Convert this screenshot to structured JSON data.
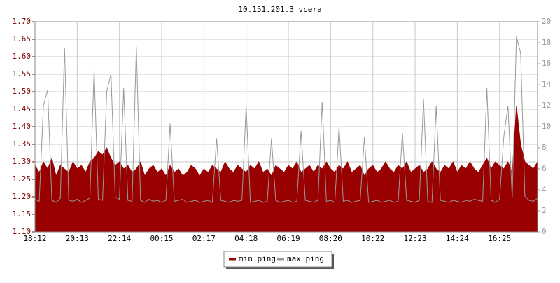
{
  "chart_data": {
    "type": "area-line",
    "title": "10.151.201.3 vcera",
    "categories": [
      "18:12",
      null,
      null,
      null,
      null,
      null,
      null,
      null,
      null,
      null,
      "20:13",
      null,
      null,
      null,
      null,
      null,
      null,
      null,
      null,
      null,
      "22:14",
      null,
      null,
      null,
      null,
      null,
      null,
      null,
      null,
      null,
      "00:15",
      null,
      null,
      null,
      null,
      null,
      null,
      null,
      null,
      null,
      "02:17",
      null,
      null,
      null,
      null,
      null,
      null,
      null,
      null,
      null,
      "04:18",
      null,
      null,
      null,
      null,
      null,
      null,
      null,
      null,
      null,
      "06:19",
      null,
      null,
      null,
      null,
      null,
      null,
      null,
      null,
      null,
      "08:20",
      null,
      null,
      null,
      null,
      null,
      null,
      null,
      null,
      null,
      "10:22",
      null,
      null,
      null,
      null,
      null,
      null,
      null,
      null,
      null,
      "12:23",
      null,
      null,
      null,
      null,
      null,
      null,
      null,
      null,
      null,
      "14:24",
      null,
      null,
      null,
      null,
      null,
      null,
      null,
      null,
      null,
      "16:25",
      null,
      null,
      null,
      null,
      null,
      null,
      null,
      null,
      null
    ],
    "series": [
      {
        "name": "min ping",
        "color": "#990000",
        "axis": "y",
        "values": [
          1.29,
          1.27,
          1.3,
          1.28,
          1.31,
          1.26,
          1.29,
          1.28,
          1.27,
          1.3,
          1.28,
          1.29,
          1.27,
          1.3,
          1.31,
          1.33,
          1.32,
          1.34,
          1.31,
          1.29,
          1.3,
          1.28,
          1.29,
          1.27,
          1.28,
          1.3,
          1.26,
          1.28,
          1.29,
          1.27,
          1.28,
          1.26,
          1.29,
          1.27,
          1.28,
          1.26,
          1.27,
          1.29,
          1.28,
          1.26,
          1.28,
          1.27,
          1.29,
          1.28,
          1.27,
          1.3,
          1.28,
          1.27,
          1.29,
          1.28,
          1.27,
          1.29,
          1.28,
          1.3,
          1.27,
          1.28,
          1.26,
          1.29,
          1.28,
          1.27,
          1.29,
          1.28,
          1.3,
          1.27,
          1.28,
          1.29,
          1.27,
          1.29,
          1.28,
          1.3,
          1.28,
          1.27,
          1.29,
          1.28,
          1.3,
          1.27,
          1.28,
          1.29,
          1.26,
          1.28,
          1.29,
          1.27,
          1.28,
          1.3,
          1.28,
          1.27,
          1.29,
          1.28,
          1.3,
          1.27,
          1.28,
          1.29,
          1.27,
          1.28,
          1.3,
          1.28,
          1.27,
          1.29,
          1.28,
          1.3,
          1.27,
          1.29,
          1.28,
          1.3,
          1.28,
          1.27,
          1.29,
          1.31,
          1.28,
          1.3,
          1.29,
          1.28,
          1.3,
          1.27,
          1.46,
          1.35,
          1.3,
          1.29,
          1.28,
          1.3
        ]
      },
      {
        "name": "max ping",
        "color": "#999999",
        "axis": "y2",
        "values": [
          3.1,
          2.9,
          12.0,
          13.5,
          3.0,
          2.8,
          3.2,
          17.5,
          3.0,
          2.9,
          3.1,
          2.8,
          3.0,
          3.2,
          15.4,
          3.1,
          3.0,
          13.4,
          15.0,
          3.3,
          3.1,
          13.7,
          3.0,
          2.9,
          17.6,
          3.0,
          2.8,
          3.1,
          2.9,
          3.0,
          2.8,
          3.0,
          10.3,
          2.9,
          3.0,
          3.1,
          2.8,
          2.9,
          3.0,
          2.8,
          2.9,
          3.0,
          2.8,
          8.9,
          3.0,
          2.9,
          2.8,
          3.0,
          2.9,
          3.0,
          12.0,
          2.8,
          2.9,
          3.0,
          2.8,
          2.9,
          8.9,
          3.0,
          2.8,
          2.9,
          3.0,
          2.8,
          2.9,
          9.6,
          3.0,
          2.9,
          2.8,
          3.0,
          12.4,
          2.9,
          3.0,
          2.8,
          10.0,
          2.9,
          3.0,
          2.8,
          2.9,
          3.0,
          9.0,
          2.8,
          2.9,
          3.0,
          2.8,
          2.9,
          3.0,
          2.8,
          2.9,
          9.4,
          3.0,
          2.9,
          2.8,
          3.0,
          12.6,
          2.9,
          2.8,
          12.0,
          3.0,
          2.9,
          2.8,
          3.0,
          2.9,
          2.8,
          3.0,
          2.9,
          3.1,
          3.0,
          2.9,
          13.7,
          3.0,
          2.8,
          3.1,
          9.0,
          12.0,
          3.2,
          18.6,
          17.0,
          3.4,
          3.0,
          2.9,
          3.2
        ]
      }
    ],
    "ylim": [
      1.1,
      1.7
    ],
    "yticks": [
      {
        "value": 1.1,
        "label": "1.10"
      },
      1.15,
      {
        "value": 1.2,
        "label": "1.20"
      },
      1.25,
      {
        "value": 1.3,
        "label": "1.30"
      },
      1.35,
      {
        "value": 1.4,
        "label": "1.40"
      },
      1.45,
      {
        "value": 1.5,
        "label": "1.50"
      },
      1.55,
      {
        "value": 1.6,
        "label": "1.60"
      },
      1.65,
      {
        "value": 1.7,
        "label": "1.70"
      }
    ],
    "y2lim": [
      0,
      20
    ],
    "y2ticks": [
      0,
      2,
      4,
      6,
      8,
      10,
      12,
      14,
      16,
      18,
      20
    ],
    "grid": true,
    "legend": "bottom"
  }
}
